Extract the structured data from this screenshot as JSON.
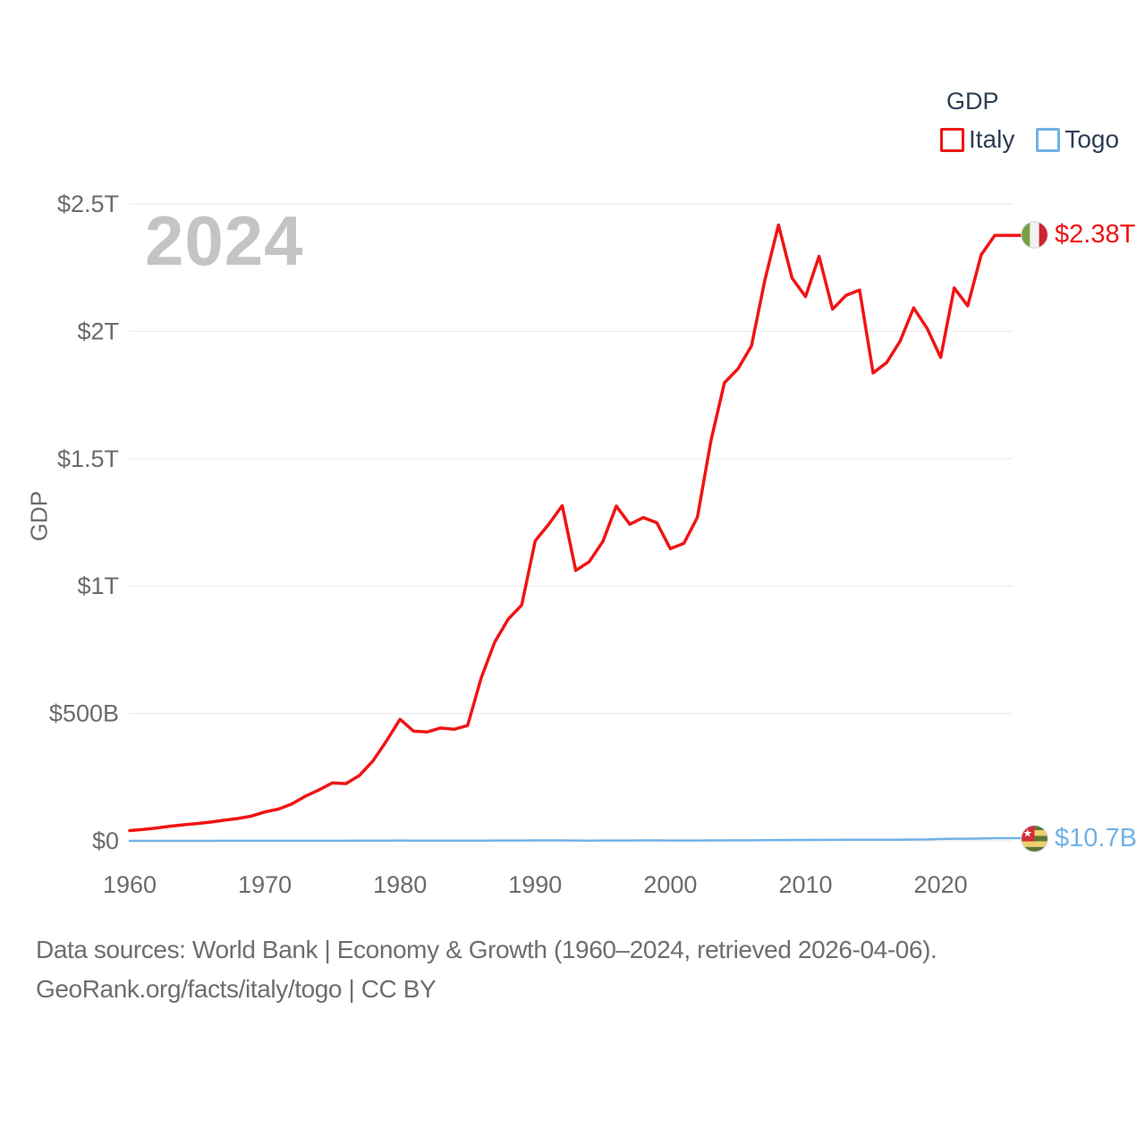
{
  "legend": {
    "title": "GDP",
    "items": [
      {
        "label": "Italy",
        "color": "#f01414"
      },
      {
        "label": "Togo",
        "color": "#72b2e6"
      }
    ]
  },
  "chart": {
    "watermark": "2024",
    "y_axis_title": "GDP"
  },
  "end_labels": {
    "italy": {
      "value": "$2.38T"
    },
    "togo": {
      "value": "$10.7B"
    }
  },
  "footer": {
    "line1": "Data sources: World Bank | Economy & Growth (1960–2024, retrieved 2026-04-06).",
    "line2": "GeoRank.org/facts/italy/togo | CC BY"
  },
  "chart_data": {
    "type": "line",
    "title": "GDP",
    "xlabel": "",
    "ylabel": "GDP",
    "unit": "USD billions",
    "ylim": [
      0,
      2500
    ],
    "grid": "horizontal",
    "legend_position": "top-right",
    "years": [
      1960,
      1961,
      1962,
      1963,
      1964,
      1965,
      1966,
      1967,
      1968,
      1969,
      1970,
      1971,
      1972,
      1973,
      1974,
      1975,
      1976,
      1977,
      1978,
      1979,
      1980,
      1981,
      1982,
      1983,
      1984,
      1985,
      1986,
      1987,
      1988,
      1989,
      1990,
      1991,
      1992,
      1993,
      1994,
      1995,
      1996,
      1997,
      1998,
      1999,
      2000,
      2001,
      2002,
      2003,
      2004,
      2005,
      2006,
      2007,
      2008,
      2009,
      2010,
      2011,
      2012,
      2013,
      2014,
      2015,
      2016,
      2017,
      2018,
      2019,
      2020,
      2021,
      2022,
      2023,
      2024
    ],
    "x_ticks": [
      1960,
      1970,
      1980,
      1990,
      2000,
      2010,
      2020
    ],
    "y_ticks": [
      {
        "label": "$0",
        "value": 0
      },
      {
        "label": "$500B",
        "value": 500
      },
      {
        "label": "$1T",
        "value": 1000
      },
      {
        "label": "$1.5T",
        "value": 1500
      },
      {
        "label": "$2T",
        "value": 2000
      },
      {
        "label": "$2.5T",
        "value": 2500
      }
    ],
    "series": [
      {
        "name": "Italy",
        "color": "#f01414",
        "end_label": "$2.38T",
        "values": [
          40.4,
          44.8,
          50.4,
          57.6,
          63.2,
          67.9,
          73.8,
          81.1,
          87.9,
          97.1,
          113.4,
          124.7,
          145.0,
          175.3,
          199.9,
          227.4,
          224.7,
          256.8,
          314.0,
          392.4,
          477.3,
          430.7,
          427.3,
          443.0,
          437.9,
          452.7,
          638.8,
          779.7,
          869.9,
          925.3,
          1177.3,
          1242.5,
          1315.8,
          1061.4,
          1095.7,
          1174.7,
          1313.9,
          1242.8,
          1269.1,
          1248.6,
          1146.7,
          1167.8,
          1269.9,
          1570.2,
          1798.3,
          1852.7,
          1942.6,
          2203.1,
          2417.5,
          2209.5,
          2136.1,
          2294.6,
          2086.9,
          2141.2,
          2162.0,
          1836.6,
          1877.1,
          1961.8,
          2091.9,
          2011.3,
          1897.5,
          2170.1,
          2099.9,
          2300.9,
          2376.5
        ]
      },
      {
        "name": "Togo",
        "color": "#72b2e6",
        "end_label": "$10.7B",
        "values": [
          0.12,
          0.13,
          0.14,
          0.15,
          0.17,
          0.19,
          0.21,
          0.23,
          0.25,
          0.27,
          0.25,
          0.28,
          0.31,
          0.38,
          0.55,
          0.61,
          0.59,
          0.69,
          0.85,
          0.92,
          1.14,
          0.97,
          0.86,
          0.77,
          0.73,
          0.81,
          1.04,
          1.22,
          1.36,
          1.37,
          1.63,
          1.64,
          1.69,
          1.23,
          0.98,
          1.31,
          1.47,
          1.5,
          1.59,
          1.58,
          1.29,
          1.33,
          1.47,
          1.71,
          1.94,
          2.12,
          2.2,
          2.52,
          3.16,
          3.36,
          3.43,
          3.87,
          3.92,
          4.34,
          4.58,
          4.18,
          4.43,
          4.6,
          5.36,
          5.49,
          7.57,
          8.41,
          8.13,
          9.17,
          10.7
        ]
      }
    ],
    "colors": {
      "axis_text": "#6b6b6b",
      "gridline": "#e8e8e8",
      "legend_text": "#2e3d54",
      "watermark": "#c4c4c4",
      "footer_text": "#6e6e6e"
    }
  }
}
